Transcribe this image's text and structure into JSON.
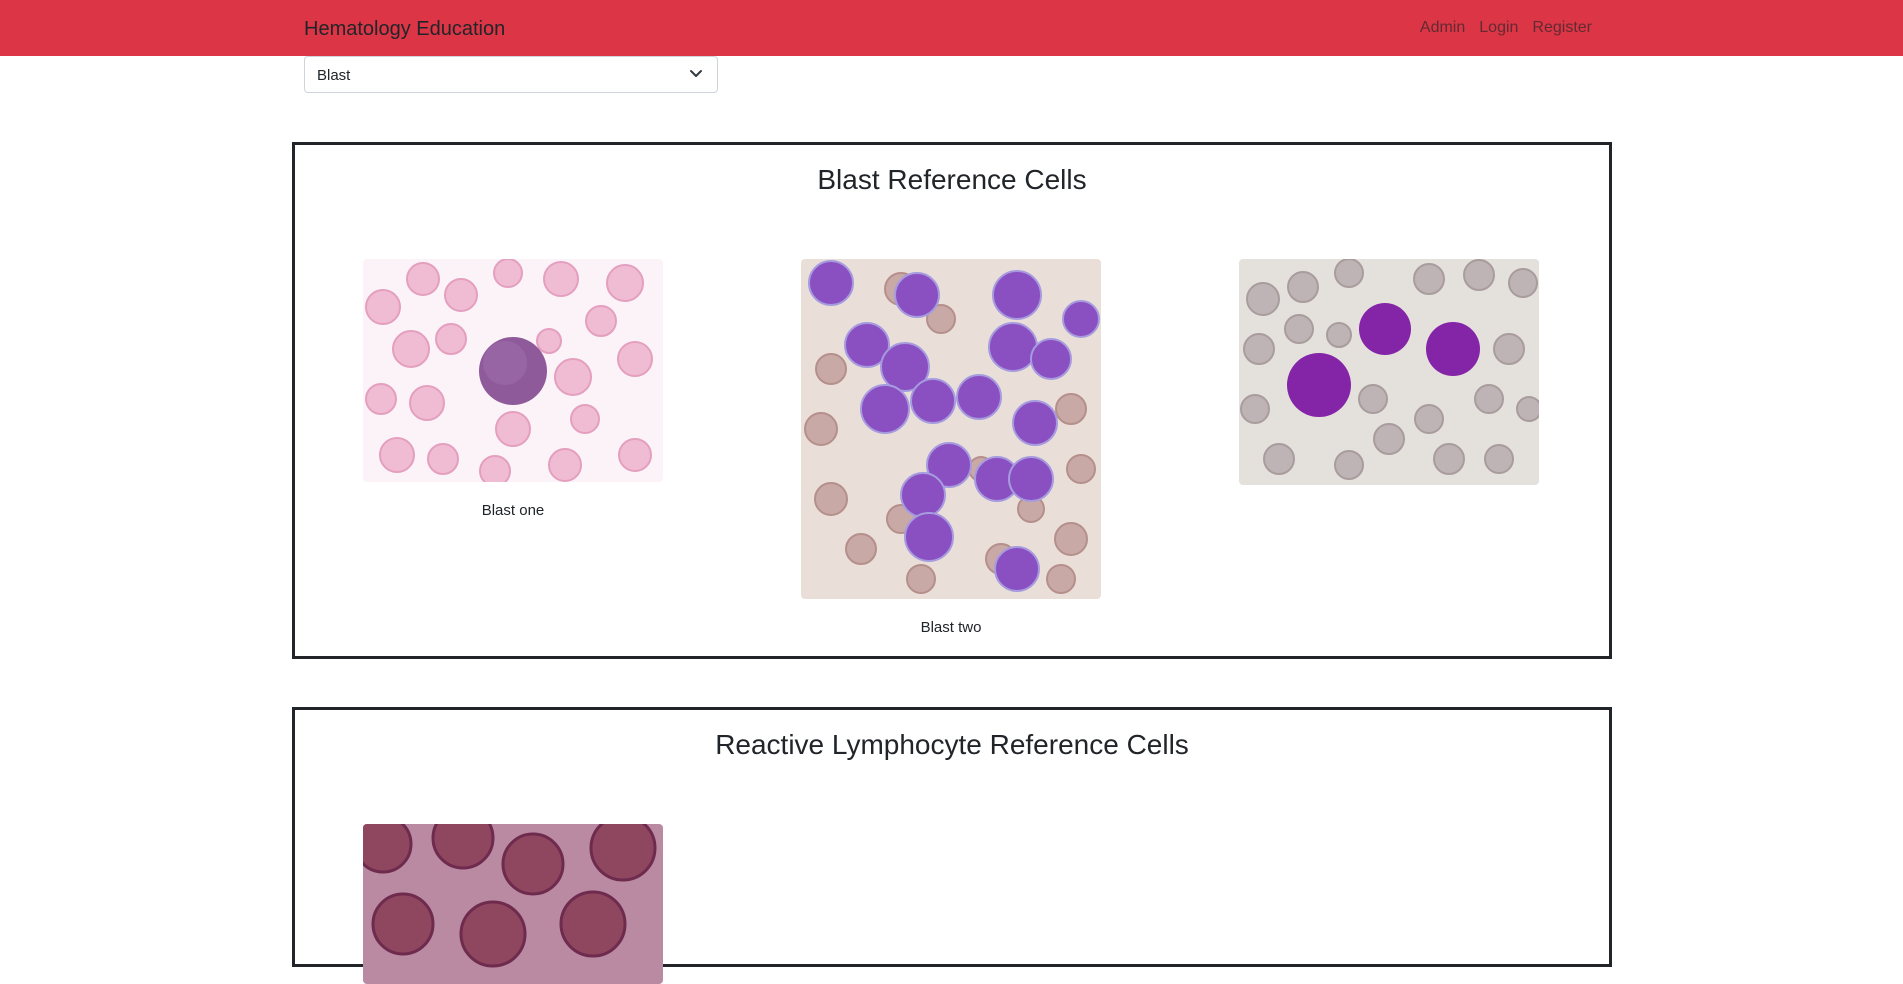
{
  "navbar": {
    "brand": "Hematology Education",
    "links": [
      "Admin",
      "Login",
      "Register"
    ],
    "bg_color": "#dc3545"
  },
  "filter": {
    "selected": "Blast",
    "icon": "chevron-down-icon"
  },
  "sections": [
    {
      "title": "Blast Reference Cells",
      "cells": [
        {
          "caption": "Blast one",
          "bg": "#fbf3f7",
          "rbc": "#f0bcd4",
          "blast": "#8e5a9a"
        },
        {
          "caption": "Blast two",
          "bg": "#e9dfd8",
          "rbc": "#c9a9a5",
          "blast": "#8a4fc0"
        },
        {
          "caption": "",
          "bg": "#e4e0dc",
          "rbc": "#bfb4b5",
          "blast": "#8425a8"
        }
      ]
    },
    {
      "title": "Reactive Lymphocyte Reference Cells",
      "cells": [
        {
          "caption": "",
          "bg": "#b98aa2",
          "rbc": "#8f4760",
          "blast": "#6e2b4e"
        }
      ]
    }
  ]
}
